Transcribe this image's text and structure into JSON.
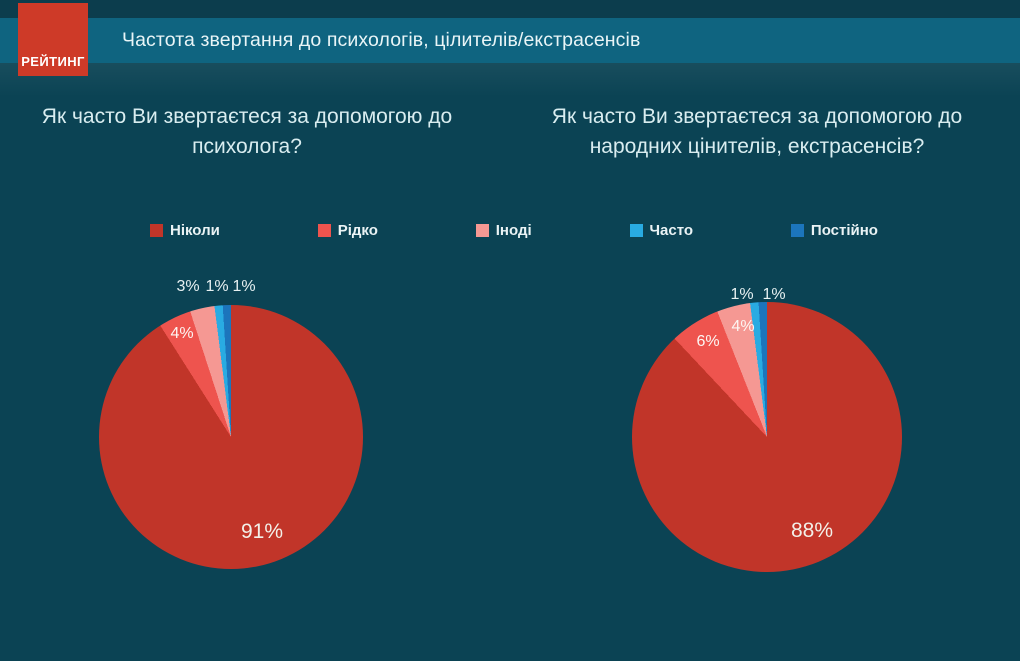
{
  "brand": {
    "logo_text": "РЕЙТИНГ"
  },
  "header": {
    "title": "Частота звертання до психологів, цілителів/екстрасенсів"
  },
  "colors": {
    "background": "#0B4354",
    "top_strip": "#0C3D4D",
    "header_band": "#0F6480",
    "logo_red": "#CE3A28",
    "text_light": "#D9EDF0"
  },
  "legend": [
    {
      "label": "Ніколи",
      "color": "#C13529"
    },
    {
      "label": "Рідко",
      "color": "#EE544E"
    },
    {
      "label": "Іноді",
      "color": "#F59893"
    },
    {
      "label": "Часто",
      "color": "#29ABE2"
    },
    {
      "label": "Постійно",
      "color": "#1C75BC"
    }
  ],
  "chart_data": [
    {
      "type": "pie",
      "title": "Як часто Ви звертаєтеся за допомогою до психолога?",
      "categories": [
        "Ніколи",
        "Рідко",
        "Іноді",
        "Часто",
        "Постійно"
      ],
      "values": [
        91,
        4,
        3,
        1,
        1
      ],
      "labels": [
        "91%",
        "4%",
        "3%",
        "1%",
        "1%"
      ],
      "colors": [
        "#C13529",
        "#EE544E",
        "#F59893",
        "#29ABE2",
        "#1C75BC"
      ],
      "start_angle_deg": 0,
      "direction": "clockwise",
      "legend_position": "top-shared"
    },
    {
      "type": "pie",
      "title": "Як часто Ви звертаєтеся за допомогою до народних цінителів, екстрасенсів?",
      "categories": [
        "Ніколи",
        "Рідко",
        "Іноді",
        "Часто",
        "Постійно"
      ],
      "values": [
        88,
        6,
        4,
        1,
        1
      ],
      "labels": [
        "88%",
        "6%",
        "4%",
        "1%",
        "1%"
      ],
      "colors": [
        "#C13529",
        "#EE544E",
        "#F59893",
        "#29ABE2",
        "#1C75BC"
      ],
      "start_angle_deg": 0,
      "direction": "clockwise",
      "legend_position": "top-shared"
    }
  ]
}
